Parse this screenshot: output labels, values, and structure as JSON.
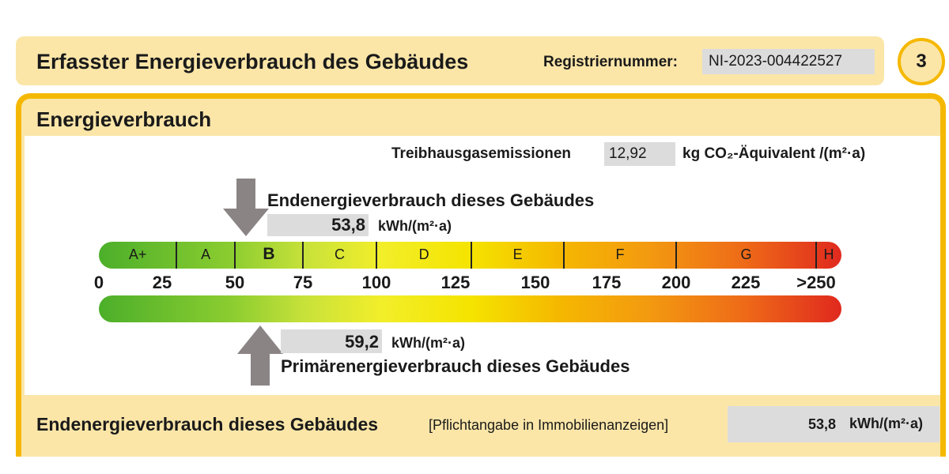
{
  "header": {
    "title": "Erfasster Energieverbrauch des Gebäudes",
    "registration_label": "Registriernummer:",
    "registration_number": "NI-2023-004422527",
    "page_number": "3"
  },
  "section": {
    "title": "Energieverbrauch",
    "ghg_label": "Treibhausgasemissionen",
    "ghg_value": "12,92",
    "ghg_unit": "kg CO₂-Äquivalent /(m²·a)"
  },
  "end_energy": {
    "title": "Endenergieverbrauch dieses Gebäudes",
    "value": "53,8",
    "numeric": 53.8,
    "unit": "kWh/(m²·a)"
  },
  "primary_energy": {
    "title": "Primärenergieverbrauch dieses Gebäudes",
    "value": "59,2",
    "numeric": 59.2,
    "unit": "kWh/(m²·a)"
  },
  "scale": {
    "classes": [
      {
        "label": "A+",
        "from": 0,
        "to": 30
      },
      {
        "label": "A",
        "from": 30,
        "to": 50
      },
      {
        "label": "B",
        "from": 50,
        "to": 75,
        "highlight": true
      },
      {
        "label": "C",
        "from": 75,
        "to": 100
      },
      {
        "label": "D",
        "from": 100,
        "to": 130
      },
      {
        "label": "E",
        "from": 130,
        "to": 160
      },
      {
        "label": "F",
        "from": 160,
        "to": 200
      },
      {
        "label": "G",
        "from": 200,
        "to": 250
      },
      {
        "label": "H",
        "from": 250,
        "to": 275
      }
    ],
    "ticks": [
      {
        "label": "0",
        "value": 0
      },
      {
        "label": "25",
        "value": 25
      },
      {
        "label": "50",
        "value": 50
      },
      {
        "label": "75",
        "value": 75
      },
      {
        "label": "100",
        "value": 100
      },
      {
        "label": "125",
        "value": 125
      },
      {
        "label": "150",
        "value": 150
      },
      {
        "label": "175",
        "value": 175
      },
      {
        "label": "200",
        "value": 200
      },
      {
        "label": "225",
        "value": 225
      },
      {
        "label": ">250",
        "value": 250
      }
    ]
  },
  "footer": {
    "title": "Endenergieverbrauch dieses Gebäudes",
    "note": "[Pflichtangabe in Immobilienanzeigen]",
    "value": "53,8",
    "unit": "kWh/(m²·a)"
  },
  "colors": {
    "accent": "#f5b800",
    "panel": "#fbe6a8",
    "field": "#dcdcdc",
    "arrow": "#8a8584"
  }
}
